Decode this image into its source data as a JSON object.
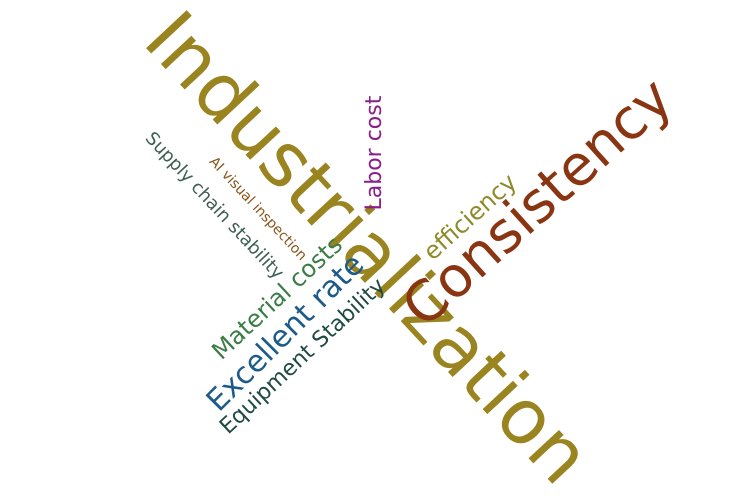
{
  "words": {
    "industrialization": {
      "text": "Industrialization",
      "color": "#9a8420"
    },
    "consistency": {
      "text": "Consistency",
      "color": "#8a3512"
    },
    "excellent_rate": {
      "text": "Excellent rate",
      "color": "#1c5a8a"
    },
    "material_costs": {
      "text": "Material costs",
      "color": "#3a7d45"
    },
    "equipment_stability": {
      "text": "Equipment Stability",
      "color": "#1f4a42"
    },
    "efficiency": {
      "text": "efficiency",
      "color": "#8f8a2a"
    },
    "labor_cost": {
      "text": "Labor cost",
      "color": "#8a1f8a"
    },
    "supply_chain_stability": {
      "text": "Supply chain stability",
      "color": "#3e5e55"
    },
    "ai_visual_inspection": {
      "text": "AI visual inspection",
      "color": "#8a5318"
    }
  }
}
